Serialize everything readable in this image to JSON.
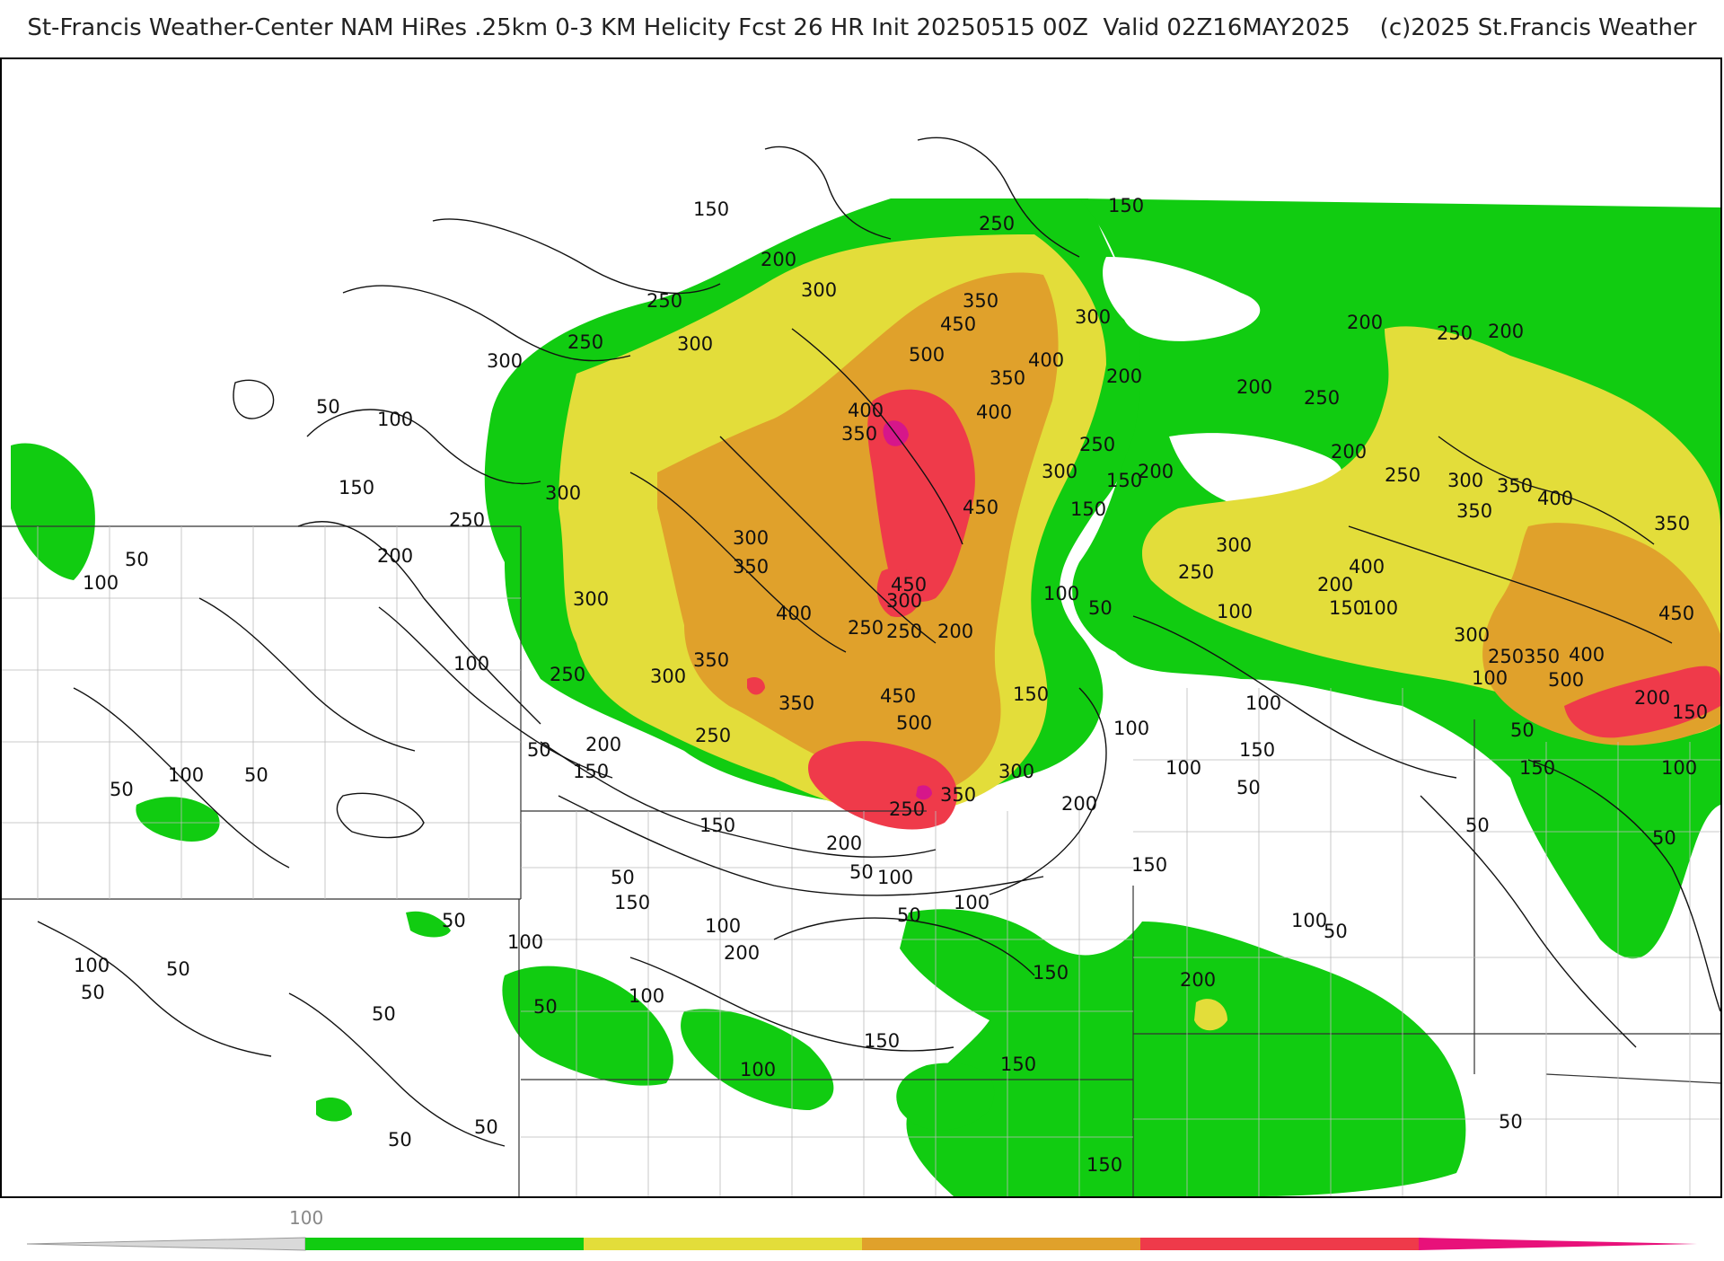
{
  "title": "St-Francis Weather-Center NAM HiRes .25km 0-3 KM Helicity Fcst 26 HR Init 20250515 00Z  Valid 02Z16MAY2025    (c)2025 St.Francis Weather",
  "colorbar": {
    "tick_label": "100",
    "segments": [
      {
        "from": 0,
        "to": 100,
        "color": "#dcdcdc",
        "style": "taper"
      },
      {
        "from": 100,
        "to": 200,
        "color": "#11cc11"
      },
      {
        "from": 200,
        "to": 300,
        "color": "#e3dd3a"
      },
      {
        "from": 300,
        "to": 400,
        "color": "#e0a12b"
      },
      {
        "from": 400,
        "to": 500,
        "color": "#ef3a4a"
      },
      {
        "from": 500,
        "to": 600,
        "color": "#e8117a",
        "style": "taper"
      }
    ]
  },
  "contour_labels": [
    "50",
    "100",
    "150",
    "200",
    "250",
    "300",
    "350",
    "400",
    "450",
    "500"
  ],
  "colors": {
    "green": "#11cc11",
    "yellow": "#e3dd3a",
    "orange": "#e0a12b",
    "red": "#ef3a4a",
    "magenta": "#d6168a"
  }
}
